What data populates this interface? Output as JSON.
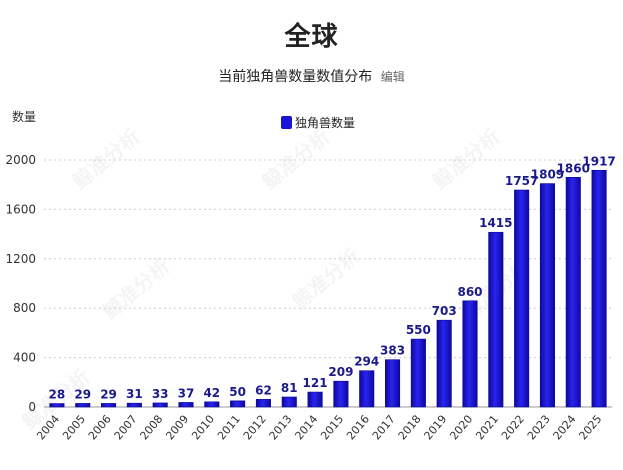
{
  "page": {
    "title": "全球",
    "subtitle": "当前独角兽数量数值分布",
    "edit_link": "编辑",
    "y_unit": "数量",
    "watermark": "鲸准分析"
  },
  "colors": {
    "bar": "#1a14d6",
    "bar_dark": "#0b0890",
    "label": "#1a1a8a",
    "grid": "#cccccc"
  },
  "chart_data": {
    "type": "bar",
    "title": "当前独角兽数量数值分布",
    "xlabel": "",
    "ylabel": "数量",
    "ylim": [
      0,
      2000
    ],
    "yticks": [
      0,
      400,
      800,
      1200,
      1600,
      2000
    ],
    "grid": true,
    "legend_position": "top-center",
    "categories": [
      "2004",
      "2005",
      "2006",
      "2007",
      "2008",
      "2009",
      "2010",
      "2011",
      "2012",
      "2013",
      "2014",
      "2015",
      "2016",
      "2017",
      "2018",
      "2019",
      "2020",
      "2021",
      "2022",
      "2023",
      "2024",
      "2025"
    ],
    "series": [
      {
        "name": "独角兽数量",
        "values": [
          28,
          29,
          29,
          31,
          33,
          37,
          42,
          50,
          62,
          81,
          121,
          209,
          294,
          383,
          550,
          703,
          860,
          1415,
          1757,
          1809,
          1860,
          1917
        ]
      }
    ]
  }
}
